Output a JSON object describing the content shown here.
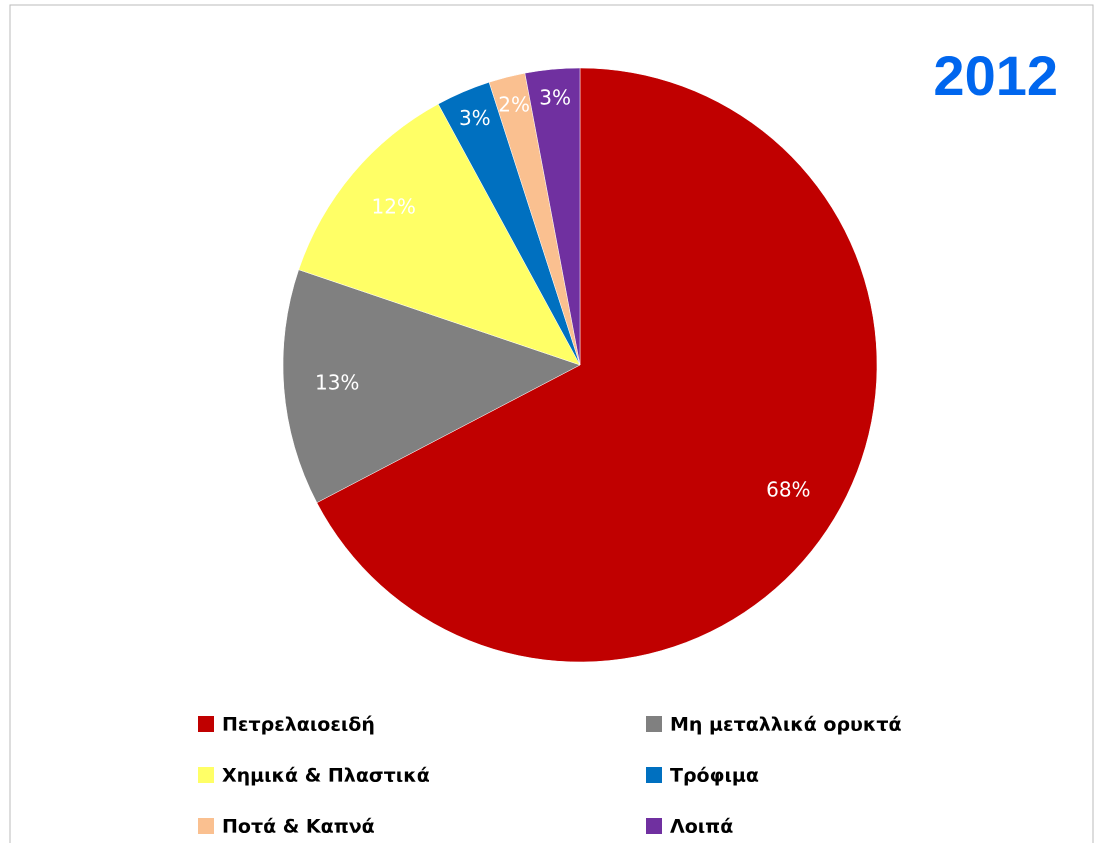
{
  "chart_data": {
    "type": "pie",
    "title": "2012",
    "categories": [
      "Πετρελαιοειδή",
      "Μη μεταλλικά ορυκτά",
      "Χημικά & Πλαστικά",
      "Τρόφιμα",
      "Ποτά & Καπνά",
      "Λοιπά"
    ],
    "values": [
      68,
      13,
      12,
      3,
      2,
      3
    ],
    "value_labels": [
      "68%",
      "13%",
      "12%",
      "3%",
      "2%",
      "3%"
    ],
    "colors": [
      "#c00000",
      "#808080",
      "#ffff66",
      "#0070c0",
      "#fac090",
      "#7030a0"
    ],
    "legend": "bottom"
  }
}
